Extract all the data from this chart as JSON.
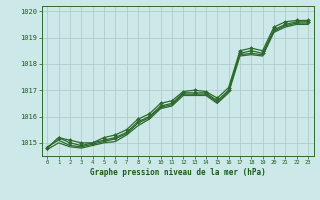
{
  "hours": [
    0,
    1,
    2,
    3,
    4,
    5,
    6,
    7,
    8,
    9,
    10,
    11,
    12,
    13,
    14,
    15,
    16,
    17,
    18,
    19,
    20,
    21,
    22,
    23
  ],
  "line1": [
    1014.8,
    1015.2,
    1015.0,
    1014.9,
    1015.0,
    1015.1,
    1015.2,
    1015.4,
    1015.8,
    1016.0,
    1016.4,
    1016.5,
    1016.9,
    1016.9,
    1016.9,
    1016.6,
    1017.0,
    1018.4,
    1018.5,
    1018.4,
    1019.3,
    1019.5,
    1019.6,
    1019.6
  ],
  "line2": [
    1014.8,
    1015.2,
    1015.1,
    1015.0,
    1015.0,
    1015.2,
    1015.3,
    1015.5,
    1015.9,
    1016.1,
    1016.5,
    1016.6,
    1016.95,
    1017.0,
    1016.95,
    1016.7,
    1017.1,
    1018.5,
    1018.6,
    1018.5,
    1019.4,
    1019.6,
    1019.65,
    1019.65
  ],
  "line3": [
    1014.85,
    1015.1,
    1014.9,
    1014.85,
    1014.95,
    1015.05,
    1015.15,
    1015.35,
    1015.75,
    1015.95,
    1016.35,
    1016.45,
    1016.85,
    1016.85,
    1016.85,
    1016.55,
    1016.95,
    1018.35,
    1018.4,
    1018.35,
    1019.25,
    1019.45,
    1019.55,
    1019.55
  ],
  "line4": [
    1014.75,
    1015.0,
    1014.85,
    1014.8,
    1014.9,
    1015.0,
    1015.05,
    1015.3,
    1015.65,
    1015.9,
    1016.3,
    1016.4,
    1016.8,
    1016.8,
    1016.8,
    1016.5,
    1016.9,
    1018.3,
    1018.35,
    1018.3,
    1019.2,
    1019.4,
    1019.5,
    1019.5
  ],
  "ylim": [
    1014.5,
    1020.2
  ],
  "yticks": [
    1015,
    1016,
    1017,
    1018,
    1019,
    1020
  ],
  "ytick_labels": [
    "1015",
    "1016",
    "1017",
    "1018",
    "1019",
    "1020"
  ],
  "line_color": "#2d6a2d",
  "bg_color": "#cce8e8",
  "grid_color": "#aac8c8",
  "xlabel": "Graphe pression niveau de la mer (hPa)",
  "xlabel_color": "#1a5c1a",
  "tick_label_color": "#1a5c1a",
  "marker_size": 2.0,
  "linewidth": 0.9
}
